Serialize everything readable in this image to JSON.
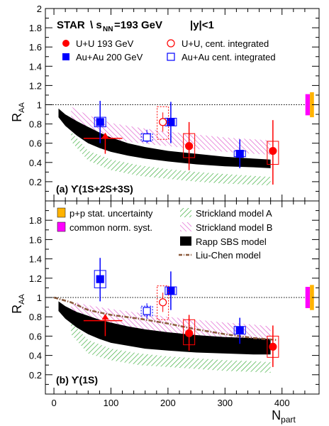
{
  "figure": {
    "header": {
      "experiment": "STAR",
      "energy": "\\ s",
      "energy_sub": "NN",
      "energy_val": "=193 GeV",
      "rapidity": "|y|<1"
    },
    "ylabel_main": "R",
    "ylabel_sub": "AA",
    "xlabel_main": "N",
    "xlabel_sub": "part"
  },
  "chart_data": [
    {
      "type": "scatter",
      "panel_label": "(a) ϒ(1S+2S+3S)",
      "xlim": [
        -15,
        465
      ],
      "ylim": [
        0,
        2
      ],
      "x_ticks": [
        0,
        100,
        200,
        300,
        400
      ],
      "y_ticks": [
        0.2,
        0.4,
        0.6,
        0.8,
        1,
        1.2,
        1.4,
        1.6,
        1.8,
        2
      ],
      "y_tick_labels": [
        "0.2",
        "0.4",
        "0.6",
        "0.8",
        "1",
        "1.2",
        "1.4",
        "1.6",
        "1.8",
        "2"
      ],
      "reference_line": 1,
      "legend": [
        {
          "key": "uu",
          "label": "U+U 193 GeV"
        },
        {
          "key": "uu_int",
          "label": "U+U, cent. integrated"
        },
        {
          "key": "auau",
          "label": "Au+Au 200 GeV"
        },
        {
          "key": "auau_int",
          "label": "Au+Au cent. integrated"
        }
      ],
      "series": [
        {
          "key": "uu",
          "points": [
            {
              "x": 90,
              "y": 0.65,
              "ylow": 0.49,
              "yup": 0.71,
              "xerr": [
                52,
                120
              ],
              "limit": "upper"
            },
            {
              "x": 237,
              "y": 0.57,
              "ylow": 0.32,
              "yup": 0.82,
              "sys": [
                0.45,
                0.7
              ]
            },
            {
              "x": 384,
              "y": 0.52,
              "ylow": 0.17,
              "yup": 0.84,
              "sys": [
                0.38,
                0.62
              ]
            }
          ]
        },
        {
          "key": "auau",
          "points": [
            {
              "x": 81,
              "y": 0.82,
              "ylow": 0.6,
              "yup": 1.04,
              "sys": [
                0.77,
                0.87
              ]
            },
            {
              "x": 205,
              "y": 0.82,
              "ylow": 0.6,
              "yup": 1.03,
              "sys": [
                0.78,
                0.86
              ]
            },
            {
              "x": 326,
              "y": 0.49,
              "ylow": 0.34,
              "yup": 0.64,
              "sys": [
                0.46,
                0.52
              ]
            }
          ]
        },
        {
          "key": "uu_int",
          "points": [
            {
              "x": 191,
              "y": 0.82,
              "ylow": 0.72,
              "yup": 0.92,
              "sys": [
                0.64,
                0.98
              ]
            }
          ]
        },
        {
          "key": "auau_int",
          "points": [
            {
              "x": 163,
              "y": 0.66,
              "ylow": 0.6,
              "yup": 0.74,
              "sys": [
                0.62,
                0.7
              ]
            }
          ]
        }
      ],
      "bands": [
        {
          "key": "strickland_b",
          "x": [
            30,
            60,
            100,
            150,
            200,
            250,
            300,
            350,
            380
          ],
          "low": [
            0.82,
            0.7,
            0.64,
            0.6,
            0.57,
            0.54,
            0.51,
            0.49,
            0.48
          ],
          "high": [
            0.98,
            0.89,
            0.81,
            0.76,
            0.72,
            0.69,
            0.66,
            0.64,
            0.63
          ]
        },
        {
          "key": "strickland_a",
          "x": [
            30,
            60,
            100,
            150,
            200,
            250,
            300,
            350,
            380
          ],
          "low": [
            0.62,
            0.42,
            0.32,
            0.26,
            0.23,
            0.2,
            0.18,
            0.17,
            0.16
          ],
          "high": [
            0.72,
            0.52,
            0.43,
            0.37,
            0.33,
            0.3,
            0.28,
            0.26,
            0.25
          ]
        },
        {
          "key": "rapp",
          "x": [
            8,
            20,
            40,
            60,
            80,
            100,
            130,
            160,
            200,
            250,
            300,
            350,
            380
          ],
          "low": [
            0.87,
            0.78,
            0.68,
            0.6,
            0.55,
            0.51,
            0.47,
            0.44,
            0.41,
            0.38,
            0.36,
            0.35,
            0.34
          ],
          "high": [
            0.96,
            0.9,
            0.83,
            0.77,
            0.71,
            0.66,
            0.6,
            0.56,
            0.52,
            0.49,
            0.46,
            0.44,
            0.43
          ]
        }
      ],
      "pp_boxes": [
        {
          "key": "norm",
          "x0": 441,
          "x1": 449,
          "y0": 0.89,
          "y1": 1.11
        },
        {
          "key": "pp",
          "x0": 449,
          "x1": 456,
          "y0": 0.87,
          "y1": 1.13
        }
      ]
    },
    {
      "type": "scatter",
      "panel_label": "(b) ϒ(1S)",
      "xlim": [
        -15,
        465
      ],
      "ylim": [
        0,
        2
      ],
      "x_ticks": [
        0,
        100,
        200,
        300,
        400
      ],
      "x_tick_labels": [
        "0",
        "100",
        "200",
        "300",
        "400"
      ],
      "y_ticks": [
        0.2,
        0.4,
        0.6,
        0.8,
        1,
        1.2,
        1.4,
        1.6,
        1.8
      ],
      "y_tick_labels": [
        "0.2",
        "0.4",
        "0.6",
        "0.8",
        "1",
        "1.2",
        "1.4",
        "1.6",
        "1.8"
      ],
      "reference_line": 1,
      "legend": [
        {
          "key": "pp",
          "label": "p+p stat. uncertainty"
        },
        {
          "key": "norm",
          "label": "common norm. syst."
        },
        {
          "key": "strickland_a",
          "label": "Strickland model A"
        },
        {
          "key": "strickland_b",
          "label": "Strickland model B"
        },
        {
          "key": "rapp",
          "label": "Rapp SBS model"
        },
        {
          "key": "liu_chen",
          "label": "Liu-Chen model"
        }
      ],
      "series": [
        {
          "key": "uu",
          "points": [
            {
              "x": 90,
              "y": 0.76,
              "ylow": 0.6,
              "yup": 0.83,
              "xerr": [
                52,
                120
              ],
              "limit": "upper"
            },
            {
              "x": 237,
              "y": 0.63,
              "ylow": 0.45,
              "yup": 0.82,
              "sys": [
                0.51,
                0.77
              ]
            },
            {
              "x": 384,
              "y": 0.49,
              "ylow": 0.28,
              "yup": 0.71,
              "sys": [
                0.38,
                0.6
              ]
            }
          ]
        },
        {
          "key": "auau",
          "points": [
            {
              "x": 81,
              "y": 1.19,
              "ylow": 0.96,
              "yup": 1.41,
              "sys": [
                1.1,
                1.28
              ]
            },
            {
              "x": 205,
              "y": 1.07,
              "ylow": 0.87,
              "yup": 1.27,
              "sys": [
                1.03,
                1.11
              ]
            },
            {
              "x": 326,
              "y": 0.66,
              "ylow": 0.52,
              "yup": 0.79,
              "sys": [
                0.62,
                0.7
              ]
            }
          ]
        },
        {
          "key": "uu_int",
          "points": [
            {
              "x": 191,
              "y": 0.95,
              "ylow": 0.85,
              "yup": 1.05,
              "sys": [
                0.77,
                1.12
              ]
            }
          ]
        },
        {
          "key": "auau_int",
          "points": [
            {
              "x": 163,
              "y": 0.86,
              "ylow": 0.78,
              "yup": 0.94,
              "sys": [
                0.81,
                0.91
              ]
            }
          ]
        }
      ],
      "bands": [
        {
          "key": "strickland_b",
          "x": [
            30,
            60,
            100,
            150,
            200,
            250,
            300,
            350,
            380
          ],
          "low": [
            0.82,
            0.75,
            0.7,
            0.67,
            0.63,
            0.6,
            0.57,
            0.55,
            0.53
          ],
          "high": [
            0.96,
            0.92,
            0.88,
            0.84,
            0.8,
            0.77,
            0.74,
            0.72,
            0.7
          ]
        },
        {
          "key": "strickland_a",
          "x": [
            30,
            60,
            100,
            150,
            200,
            250,
            300,
            350,
            380
          ],
          "low": [
            0.62,
            0.42,
            0.35,
            0.3,
            0.28,
            0.26,
            0.24,
            0.23,
            0.22
          ],
          "high": [
            0.75,
            0.56,
            0.47,
            0.42,
            0.39,
            0.37,
            0.35,
            0.34,
            0.33
          ]
        },
        {
          "key": "rapp",
          "x": [
            8,
            20,
            40,
            60,
            80,
            100,
            130,
            160,
            200,
            250,
            300,
            350,
            380
          ],
          "low": [
            0.86,
            0.78,
            0.69,
            0.62,
            0.57,
            0.53,
            0.5,
            0.47,
            0.45,
            0.43,
            0.42,
            0.41,
            0.41
          ],
          "high": [
            0.96,
            0.91,
            0.85,
            0.81,
            0.77,
            0.74,
            0.7,
            0.67,
            0.64,
            0.61,
            0.59,
            0.58,
            0.57
          ]
        }
      ],
      "lines": [
        {
          "key": "liu_chen",
          "x": [
            0,
            30,
            60,
            100,
            150,
            200,
            250,
            300,
            350,
            390
          ],
          "y": [
            1.0,
            0.95,
            0.87,
            0.82,
            0.78,
            0.73,
            0.67,
            0.62,
            0.58,
            0.56
          ]
        }
      ],
      "pp_boxes": [
        {
          "key": "norm",
          "x0": 441,
          "x1": 449,
          "y0": 0.89,
          "y1": 1.11
        },
        {
          "key": "pp",
          "x0": 449,
          "x1": 456,
          "y0": 0.87,
          "y1": 1.13
        }
      ]
    }
  ],
  "styles": {
    "uu": "#ff0000",
    "auau": "#0000ff",
    "pp": "#ffb300",
    "norm": "#ff00ff",
    "strickland_a": "#33aa33",
    "strickland_b": "#dd55cc",
    "rapp": "#000000",
    "liu_chen": "#8b5a3c"
  }
}
